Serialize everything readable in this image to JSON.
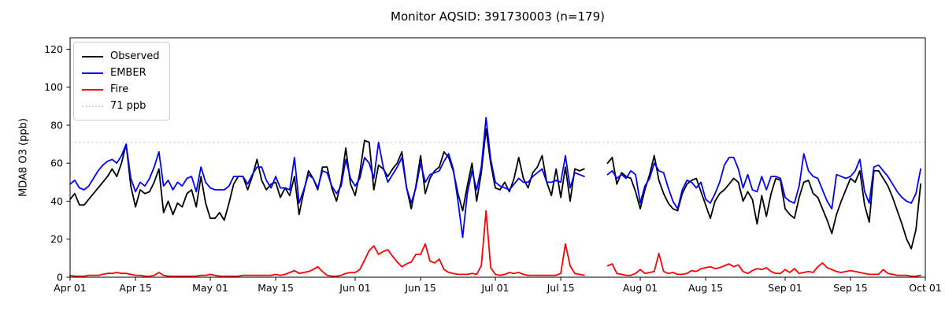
{
  "figure": {
    "title": "Monitor AQSID: 391730003 (n=179)",
    "ylabel": "MDA8 O3 (ppb)"
  },
  "legend": {
    "position": "upper left",
    "items": [
      {
        "label": "Observed",
        "color": "#000000",
        "style": "solid"
      },
      {
        "label": "EMBER",
        "color": "#0000ff",
        "style": "solid"
      },
      {
        "label": "Fire",
        "color": "#ff0000",
        "style": "solid"
      },
      {
        "label": "71 ppb",
        "color": "#d3d3d3",
        "style": "dotted"
      }
    ]
  },
  "colors": {
    "background": "#ffffff",
    "axes": "#000000",
    "text": "#000000",
    "observed": "#000000",
    "ember": "#0000ff",
    "fire": "#ff0000",
    "threshold": "#d3d3d3"
  },
  "chart_data": {
    "type": "line",
    "title": "Monitor AQSID: 391730003 (n=179)",
    "xlabel": "",
    "ylabel": "MDA8 O3 (ppb)",
    "ylim": [
      0,
      126
    ],
    "yticks": [
      0,
      20,
      40,
      60,
      80,
      100,
      120
    ],
    "grid": false,
    "legend_position": "upper left",
    "date_range": {
      "start": "Apr 01",
      "end": "Sep 30",
      "days": 183,
      "n_observations": 179
    },
    "missing_dates": [
      "Jul 21",
      "Jul 22",
      "Jul 23",
      "Jul 24"
    ],
    "x_tick_labels": [
      "Apr 01",
      "Apr 15",
      "May 01",
      "May 15",
      "Jun 01",
      "Jun 15",
      "Jul 01",
      "Jul 15",
      "Aug 01",
      "Aug 15",
      "Sep 01",
      "Sep 15",
      "Oct 01"
    ],
    "x_tick_days": [
      0,
      14,
      30,
      44,
      61,
      75,
      91,
      105,
      122,
      136,
      153,
      167,
      183
    ],
    "threshold": {
      "label": "71 ppb",
      "value": 71,
      "color": "#d3d3d3",
      "style": "dotted"
    },
    "series": [
      {
        "name": "Observed",
        "color": "#000000",
        "values": [
          41,
          44,
          38,
          38,
          41,
          44,
          47,
          50,
          53,
          57,
          53,
          60,
          70,
          48,
          37,
          46,
          44,
          45,
          50,
          57,
          34,
          40,
          33,
          39,
          37,
          44,
          46,
          37,
          53,
          39,
          31,
          31,
          34,
          30,
          39,
          49,
          53,
          53,
          46,
          53,
          62,
          51,
          46,
          49,
          50,
          42,
          47,
          43,
          53,
          33,
          45,
          56,
          52,
          46,
          58,
          58,
          47,
          40,
          50,
          68,
          49,
          43,
          55,
          72,
          71,
          46,
          59,
          57,
          53,
          57,
          60,
          66,
          47,
          36,
          48,
          64,
          44,
          52,
          56,
          58,
          66,
          63,
          56,
          44,
          35,
          48,
          60,
          40,
          55,
          78,
          60,
          47,
          46,
          50,
          45,
          52,
          63,
          52,
          47,
          55,
          58,
          64,
          50,
          43,
          57,
          42,
          58,
          40,
          57,
          56,
          57,
          null,
          null,
          null,
          null,
          60,
          63,
          49,
          55,
          53,
          52,
          45,
          36,
          46,
          54,
          64,
          51,
          44,
          39,
          36,
          35,
          44,
          49,
          51,
          52,
          45,
          38,
          31,
          40,
          44,
          46,
          49,
          52,
          50,
          40,
          45,
          41,
          28,
          43,
          32,
          44,
          52,
          51,
          36,
          33,
          31,
          42,
          50,
          51,
          44,
          42,
          36,
          30,
          23,
          33,
          40,
          46,
          52,
          50,
          56,
          38,
          29,
          56,
          56,
          52,
          48,
          42,
          35,
          28,
          20,
          15,
          25,
          49
        ]
      },
      {
        "name": "EMBER",
        "color": "#0000ff",
        "values": [
          49,
          51,
          47,
          46,
          48,
          52,
          56,
          59,
          61,
          62,
          60,
          64,
          70,
          52,
          45,
          50,
          48,
          52,
          58,
          66,
          48,
          51,
          46,
          50,
          48,
          52,
          53,
          45,
          58,
          50,
          47,
          46,
          46,
          46,
          48,
          53,
          53,
          53,
          49,
          54,
          58,
          58,
          51,
          47,
          53,
          47,
          47,
          46,
          63,
          39,
          46,
          54,
          52,
          47,
          56,
          55,
          48,
          44,
          48,
          62,
          52,
          48,
          52,
          63,
          60,
          52,
          71,
          58,
          50,
          54,
          58,
          63,
          47,
          39,
          47,
          60,
          50,
          54,
          55,
          56,
          61,
          65,
          57,
          40,
          21,
          44,
          56,
          46,
          58,
          84,
          62,
          50,
          48,
          47,
          46,
          49,
          52,
          50,
          50,
          53,
          55,
          57,
          50,
          50,
          51,
          50,
          64,
          47,
          55,
          54,
          53,
          null,
          null,
          null,
          null,
          54,
          56,
          52,
          54,
          52,
          56,
          54,
          39,
          48,
          52,
          60,
          56,
          55,
          47,
          40,
          36,
          46,
          51,
          50,
          47,
          50,
          41,
          39,
          44,
          50,
          59,
          63,
          63,
          57,
          47,
          54,
          46,
          45,
          53,
          46,
          53,
          53,
          52,
          42,
          40,
          39,
          48,
          65,
          56,
          53,
          52,
          46,
          40,
          36,
          54,
          53,
          52,
          53,
          56,
          62,
          45,
          39,
          58,
          59,
          56,
          53,
          49,
          45,
          42,
          40,
          39,
          44,
          57
        ]
      },
      {
        "name": "Fire",
        "color": "#ff0000",
        "values": [
          1,
          0.5,
          0.5,
          0.5,
          1,
          1,
          1,
          1.5,
          2,
          2,
          2.5,
          2,
          2,
          1.5,
          1,
          1,
          0.5,
          0.5,
          1,
          2.5,
          1,
          0.5,
          0.5,
          0.5,
          0.5,
          0.5,
          0.5,
          0.5,
          1,
          1,
          1.5,
          1,
          0.5,
          0.5,
          0.5,
          0.5,
          0.5,
          1,
          1,
          1,
          1,
          1,
          1,
          1,
          1.5,
          1,
          1.5,
          2.5,
          3.5,
          2,
          2.5,
          3,
          4,
          5.5,
          3,
          1,
          0.5,
          0.5,
          1,
          2,
          2.5,
          2.5,
          4,
          9,
          14,
          16.5,
          12,
          13.5,
          14.5,
          11,
          8,
          5.5,
          7,
          8,
          12,
          12,
          17.5,
          8.5,
          7.5,
          9.5,
          4,
          2.5,
          2,
          1.5,
          1.5,
          1.5,
          2,
          1.5,
          6,
          35,
          5,
          1.5,
          1,
          1.5,
          2.5,
          2,
          2.5,
          1.5,
          1,
          1,
          1,
          1,
          1,
          1,
          1,
          2,
          17.5,
          6,
          2,
          1.5,
          1,
          null,
          null,
          null,
          null,
          6,
          7,
          2,
          1.5,
          1,
          1,
          2,
          4,
          2,
          2.5,
          3,
          12.5,
          3,
          2,
          2.5,
          1.5,
          1.5,
          2,
          3.5,
          3,
          4.5,
          5,
          5.5,
          4.5,
          5,
          6,
          7,
          5.5,
          6.5,
          3,
          2,
          3.5,
          4.5,
          4,
          5,
          3,
          2,
          2,
          4,
          2.5,
          4.5,
          2,
          2.5,
          3,
          2.5,
          5.5,
          7.5,
          5,
          4,
          3,
          2.5,
          3,
          3.5,
          3,
          2.5,
          2,
          1.5,
          1.5,
          1.5,
          4,
          2,
          1.5,
          1,
          1,
          1,
          0.5,
          0.5,
          1
        ]
      }
    ]
  }
}
